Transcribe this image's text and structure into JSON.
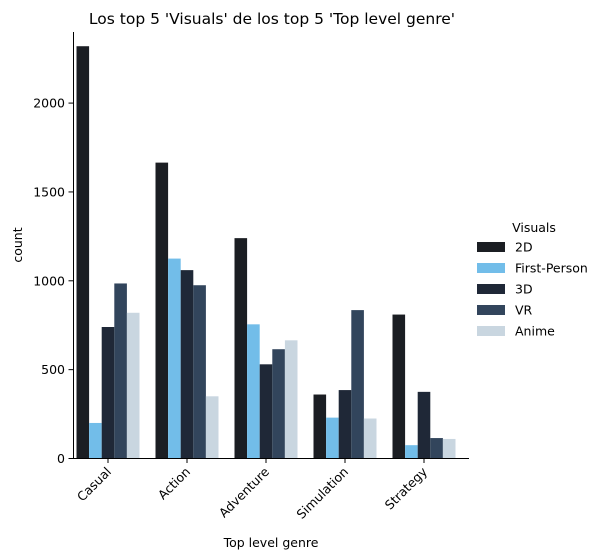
{
  "colors": {
    "2D": "#1b1e23",
    "First-Person": "#72bde9",
    "3D": "#1f2837",
    "VR": "#32455c",
    "Anime": "#c9d6e0"
  },
  "chart_data": {
    "type": "bar",
    "title": "Los top 5 'Visuals' de los top 5 'Top level genre'",
    "xlabel": "Top level genre",
    "ylabel": "count",
    "categories": [
      "Casual",
      "Action",
      "Adventure",
      "Simulation",
      "Strategy"
    ],
    "ylim": [
      0,
      2400
    ],
    "yticks": [
      0,
      500,
      1000,
      1500,
      2000
    ],
    "grid": false,
    "legend_title": "Visuals",
    "legend_position": "right",
    "series": [
      {
        "name": "2D",
        "values": [
          2320,
          1665,
          1240,
          360,
          810
        ]
      },
      {
        "name": "First-Person",
        "values": [
          200,
          1125,
          755,
          230,
          75
        ]
      },
      {
        "name": "3D",
        "values": [
          740,
          1060,
          530,
          385,
          375
        ]
      },
      {
        "name": "VR",
        "values": [
          985,
          975,
          615,
          835,
          115
        ]
      },
      {
        "name": "Anime",
        "values": [
          820,
          350,
          665,
          225,
          110
        ]
      }
    ]
  }
}
